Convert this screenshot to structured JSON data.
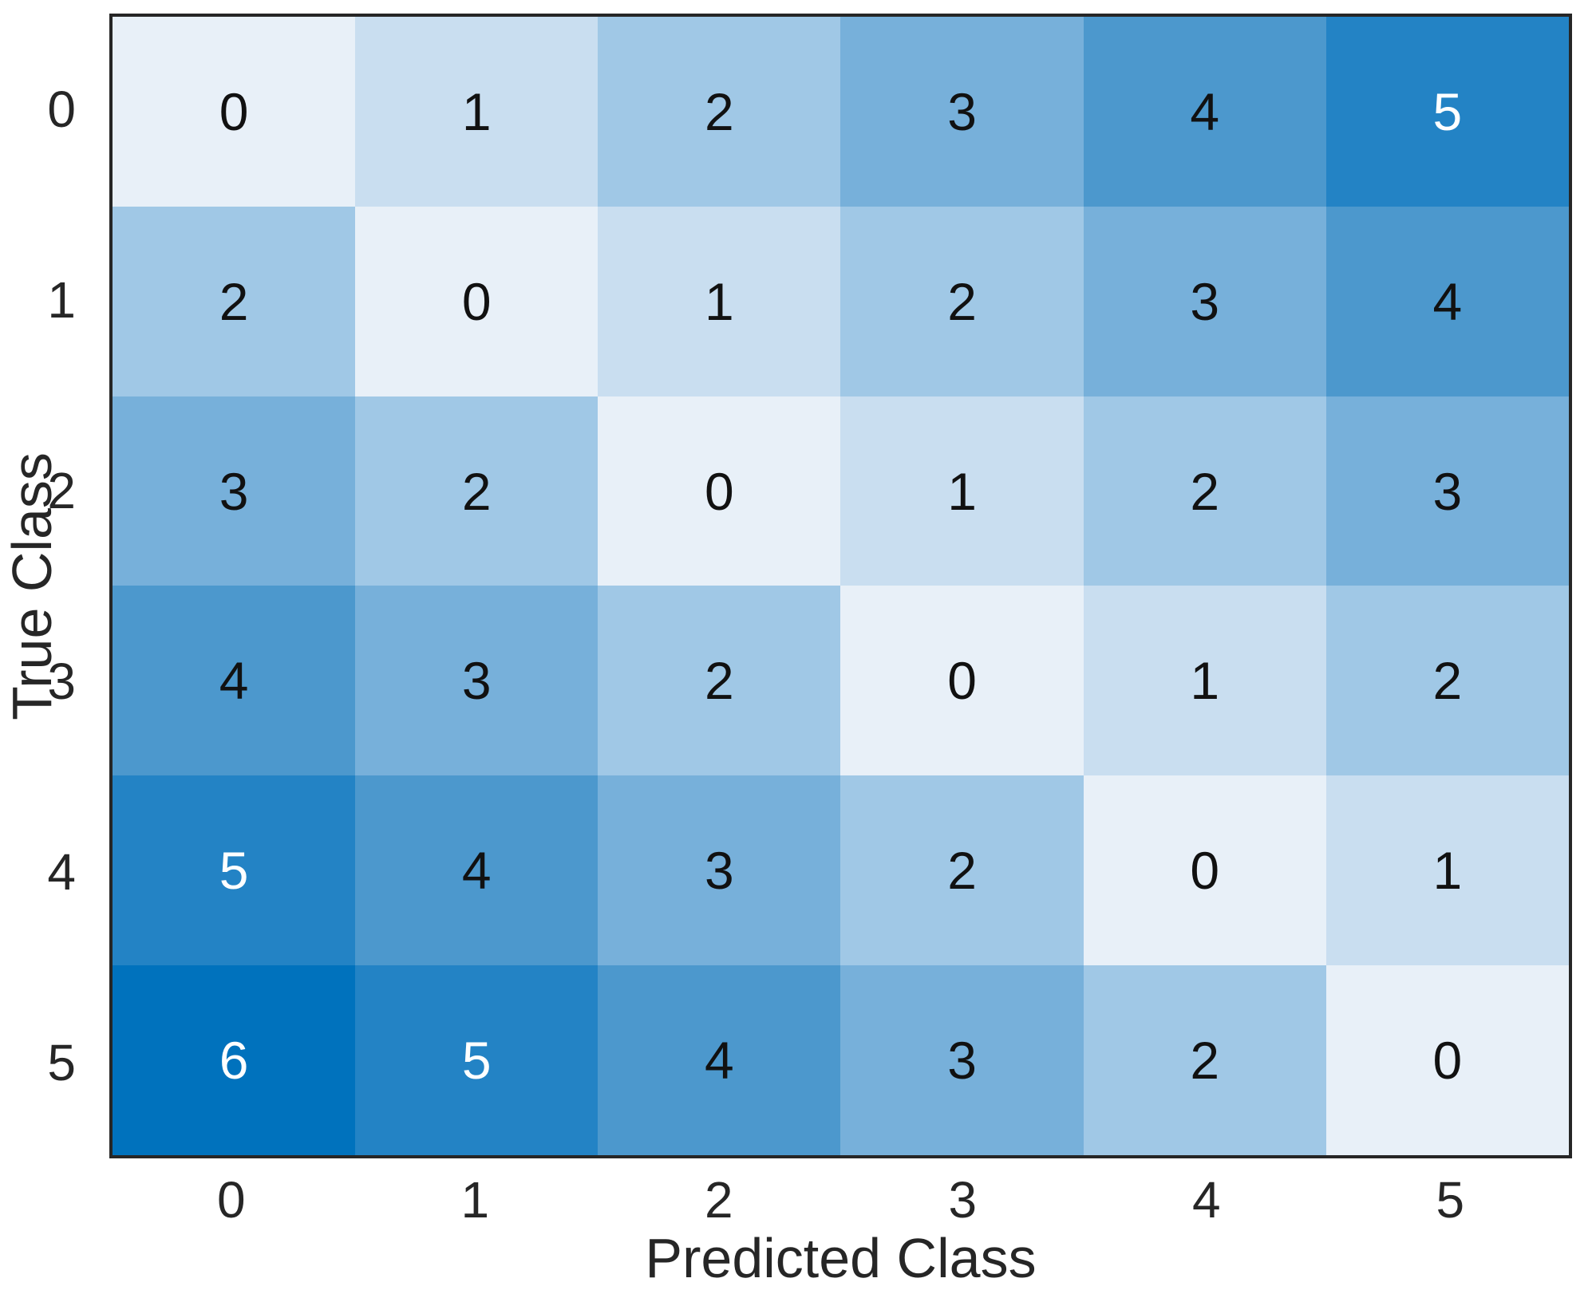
{
  "chart_data": {
    "type": "heatmap",
    "title": "",
    "xlabel": "Predicted Class",
    "ylabel": "True Class",
    "x_tick_labels": [
      "0",
      "1",
      "2",
      "3",
      "4",
      "5"
    ],
    "y_tick_labels": [
      "0",
      "1",
      "2",
      "3",
      "4",
      "5"
    ],
    "matrix": [
      [
        0,
        1,
        2,
        3,
        4,
        5
      ],
      [
        2,
        0,
        1,
        2,
        3,
        4
      ],
      [
        3,
        2,
        0,
        1,
        2,
        3
      ],
      [
        4,
        3,
        2,
        0,
        1,
        2
      ],
      [
        5,
        4,
        3,
        2,
        0,
        1
      ],
      [
        6,
        5,
        4,
        3,
        2,
        0
      ]
    ],
    "value_range": [
      0,
      6
    ],
    "palette": [
      "#E8F0F8",
      "#C9DEF0",
      "#A0C8E6",
      "#77B0DA",
      "#4C98CD",
      "#2383C5",
      "#0072BD"
    ],
    "light_text_min_value": 5,
    "colors": {
      "cell_text_dark": "#111111",
      "cell_text_light": "#ffffff",
      "axis_frame": "#262626",
      "axis_text": "#262626",
      "background": "#ffffff"
    },
    "layout": {
      "grid": "off",
      "legend": "none",
      "colorbar": "none"
    }
  }
}
